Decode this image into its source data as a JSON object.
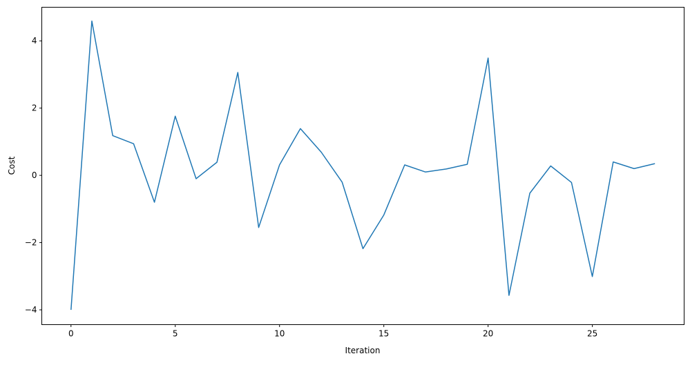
{
  "chart_data": {
    "type": "line",
    "title": "",
    "xlabel": "Iteration",
    "ylabel": "Cost",
    "xlim": [
      -1.4,
      29.4
    ],
    "ylim": [
      -4.44,
      5.0
    ],
    "xticks": [
      0,
      5,
      10,
      15,
      20,
      25
    ],
    "yticks": [
      -4,
      -2,
      0,
      2,
      4
    ],
    "ytick_labels": [
      "−4",
      "−2",
      "0",
      "2",
      "4"
    ],
    "grid": false,
    "line_color": "#1f77b4",
    "x": [
      0,
      1,
      2,
      3,
      4,
      5,
      6,
      7,
      8,
      9,
      10,
      11,
      12,
      13,
      14,
      15,
      16,
      17,
      18,
      19,
      20,
      21,
      22,
      23,
      24,
      25,
      26,
      27,
      28
    ],
    "y": [
      -4.0,
      4.59,
      1.18,
      0.94,
      -0.8,
      1.76,
      -0.1,
      0.39,
      3.06,
      -1.55,
      0.31,
      1.39,
      0.69,
      -0.2,
      -2.18,
      -1.18,
      0.31,
      0.1,
      0.19,
      0.33,
      3.49,
      -3.57,
      -0.53,
      0.28,
      -0.21,
      -3.01,
      0.4,
      0.2,
      0.35
    ]
  }
}
